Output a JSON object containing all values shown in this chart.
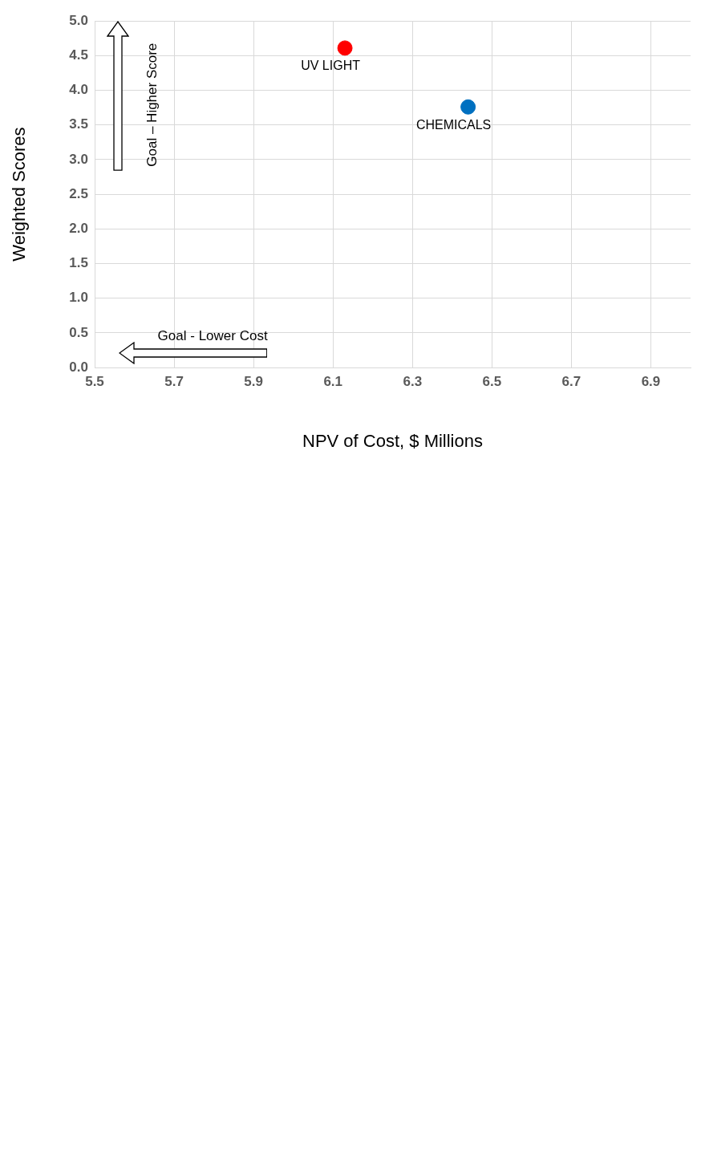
{
  "chart_data": {
    "type": "scatter",
    "xlabel": "NPV of Cost, $ Millions",
    "ylabel": "Weighted Scores",
    "xlim": [
      5.5,
      7.0
    ],
    "xticks": [
      5.5,
      5.7,
      5.9,
      6.1,
      6.3,
      6.5,
      6.7,
      6.9
    ],
    "ylim": [
      0,
      5
    ],
    "yticks": [
      {
        "value": 0,
        "label": "0.0"
      },
      {
        "value": 0.5,
        "label": "0.5"
      },
      {
        "value": 1,
        "label": "1.0"
      },
      {
        "value": 1.5,
        "label": "1.5"
      },
      {
        "value": 2,
        "label": "2.0"
      },
      {
        "value": 2.5,
        "label": "2.5"
      },
      {
        "value": 3,
        "label": "3.0"
      },
      {
        "value": 3.5,
        "label": "3.5"
      },
      {
        "value": 4,
        "label": "4.0"
      },
      {
        "value": 4.5,
        "label": "4.5"
      },
      {
        "value": 5,
        "label": "5.0"
      }
    ],
    "grid": true,
    "marker": "circle",
    "annotations": [
      "Goal – Higher Score",
      "Goal - Lower Cost"
    ],
    "series": [
      {
        "name": "UV LIGHT",
        "color": "#ff0000",
        "x": [
          6.13
        ],
        "values": [
          4.61
        ]
      },
      {
        "name": "CHEMICALS",
        "color": "#0070c0",
        "x": [
          6.44
        ],
        "values": [
          3.76
        ]
      }
    ]
  }
}
